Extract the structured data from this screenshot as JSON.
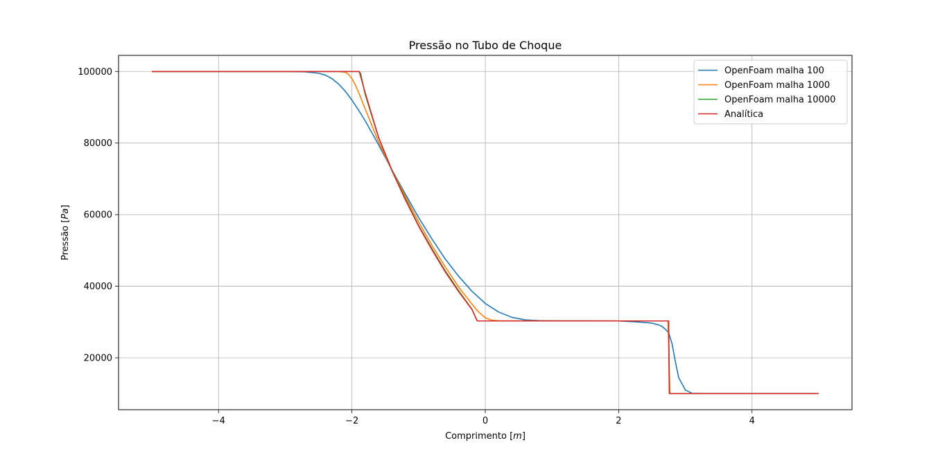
{
  "chart_data": {
    "type": "line",
    "title": "Pressão no Tubo de Choque",
    "xlabel": "Comprimento",
    "xlabel_unit": "m",
    "ylabel": "Pressão",
    "ylabel_unit": "Pa",
    "xlim": [
      -5.5,
      5.5
    ],
    "ylim": [
      5500,
      104500
    ],
    "xticks": [
      -4,
      -2,
      0,
      2,
      4
    ],
    "xtick_labels": [
      "−4",
      "−2",
      "0",
      "2",
      "4"
    ],
    "yticks": [
      20000,
      40000,
      60000,
      80000,
      100000
    ],
    "ytick_labels": [
      "20000",
      "40000",
      "60000",
      "80000",
      "100000"
    ],
    "grid": true,
    "legend_position": "top-right",
    "series": [
      {
        "name": "OpenFoam malha 100",
        "color": "#1f77b4",
        "points": [
          [
            -5.0,
            100000
          ],
          [
            -3.0,
            99990
          ],
          [
            -2.7,
            99900
          ],
          [
            -2.5,
            99500
          ],
          [
            -2.4,
            99000
          ],
          [
            -2.3,
            98000
          ],
          [
            -2.2,
            96500
          ],
          [
            -2.1,
            94500
          ],
          [
            -2.0,
            92000
          ],
          [
            -1.9,
            89200
          ],
          [
            -1.8,
            86200
          ],
          [
            -1.6,
            79500
          ],
          [
            -1.4,
            72500
          ],
          [
            -1.2,
            65800
          ],
          [
            -1.0,
            59200
          ],
          [
            -0.8,
            53200
          ],
          [
            -0.6,
            47600
          ],
          [
            -0.4,
            42800
          ],
          [
            -0.2,
            38600
          ],
          [
            0.0,
            35200
          ],
          [
            0.2,
            32800
          ],
          [
            0.4,
            31300
          ],
          [
            0.6,
            30600
          ],
          [
            0.8,
            30400
          ],
          [
            1.0,
            30350
          ],
          [
            2.0,
            30300
          ],
          [
            2.3,
            30000
          ],
          [
            2.5,
            29700
          ],
          [
            2.6,
            29200
          ],
          [
            2.65,
            28800
          ],
          [
            2.7,
            28000
          ],
          [
            2.75,
            27000
          ],
          [
            2.8,
            24000
          ],
          [
            2.85,
            19000
          ],
          [
            2.9,
            14500
          ],
          [
            3.0,
            11000
          ],
          [
            3.1,
            10100
          ],
          [
            3.3,
            10000
          ],
          [
            5.0,
            10000
          ]
        ]
      },
      {
        "name": "OpenFoam malha 1000",
        "color": "#ff7f0e",
        "points": [
          [
            -5.0,
            100000
          ],
          [
            -2.2,
            100000
          ],
          [
            -2.1,
            99800
          ],
          [
            -2.05,
            99200
          ],
          [
            -2.0,
            98000
          ],
          [
            -1.95,
            96300
          ],
          [
            -1.9,
            94200
          ],
          [
            -1.8,
            89500
          ],
          [
            -1.6,
            80300
          ],
          [
            -1.4,
            72500
          ],
          [
            -1.2,
            65200
          ],
          [
            -1.0,
            58000
          ],
          [
            -0.8,
            51400
          ],
          [
            -0.6,
            45400
          ],
          [
            -0.4,
            39800
          ],
          [
            -0.3,
            37400
          ],
          [
            -0.2,
            35000
          ],
          [
            -0.1,
            32800
          ],
          [
            0.0,
            31200
          ],
          [
            0.1,
            30500
          ],
          [
            0.2,
            30350
          ],
          [
            2.7,
            30300
          ],
          [
            2.74,
            30300
          ],
          [
            2.77,
            10100
          ],
          [
            2.8,
            10000
          ],
          [
            5.0,
            10000
          ]
        ]
      },
      {
        "name": "OpenFoam malha 10000",
        "color": "#2ca02c",
        "points": [
          [
            -5.0,
            100000
          ],
          [
            -1.9,
            100000
          ],
          [
            -1.87,
            99500
          ],
          [
            -1.8,
            93500
          ],
          [
            -1.6,
            81500
          ],
          [
            -1.4,
            72500
          ],
          [
            -1.2,
            64500
          ],
          [
            -1.0,
            57000
          ],
          [
            -0.8,
            50500
          ],
          [
            -0.6,
            44300
          ],
          [
            -0.4,
            38800
          ],
          [
            -0.2,
            33600
          ],
          [
            -0.12,
            30300
          ],
          [
            2.75,
            30300
          ],
          [
            2.76,
            10000
          ],
          [
            5.0,
            10000
          ]
        ]
      },
      {
        "name": "Analítica",
        "color": "#d62728",
        "points": [
          [
            -5.0,
            100000
          ],
          [
            -1.89,
            100000
          ],
          [
            -1.8,
            94000
          ],
          [
            -1.6,
            81600
          ],
          [
            -1.4,
            72300
          ],
          [
            -1.2,
            64200
          ],
          [
            -1.0,
            56800
          ],
          [
            -0.8,
            50200
          ],
          [
            -0.6,
            44000
          ],
          [
            -0.4,
            38500
          ],
          [
            -0.2,
            33500
          ],
          [
            -0.12,
            30300
          ],
          [
            2.75,
            30300
          ],
          [
            2.76,
            10000
          ],
          [
            5.0,
            10000
          ]
        ]
      }
    ]
  }
}
